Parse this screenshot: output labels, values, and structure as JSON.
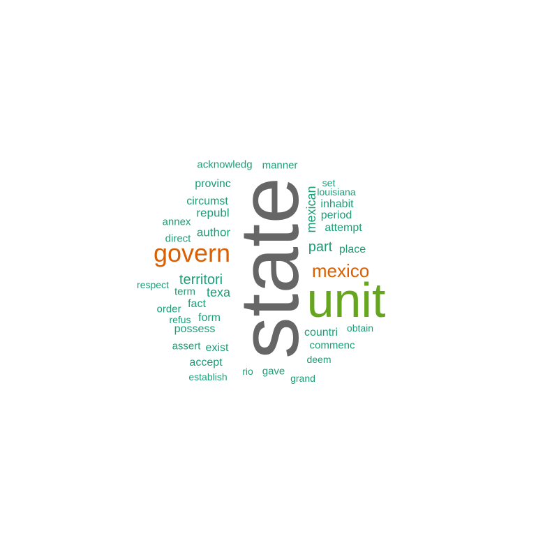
{
  "colors": {
    "background": "#ffffff",
    "gray": "#666666",
    "green": "#66a61e",
    "orange": "#d95f02",
    "teal": "#1b9e77"
  },
  "words": {
    "state": "state",
    "unit": "unit",
    "govern": "govern",
    "mexico": "mexico",
    "territori": "territori",
    "part": "part",
    "mexican": "mexican",
    "acknowledg": "acknowledg",
    "manner": "manner",
    "provinc": "provinc",
    "set": "set",
    "louisiana": "louisiana",
    "circumst": "circumst",
    "inhabit": "inhabit",
    "republ": "republ",
    "period": "period",
    "annex": "annex",
    "attempt": "attempt",
    "author": "author",
    "direct": "direct",
    "place": "place",
    "respect": "respect",
    "term": "term",
    "texa": "texa",
    "fact": "fact",
    "order": "order",
    "refus": "refus",
    "form": "form",
    "possess": "possess",
    "countri": "countri",
    "obtain": "obtain",
    "assert": "assert",
    "exist": "exist",
    "commenc": "commenc",
    "accept": "accept",
    "deem": "deem",
    "rio": "rio",
    "gave": "gave",
    "establish": "establish",
    "grand": "grand"
  }
}
